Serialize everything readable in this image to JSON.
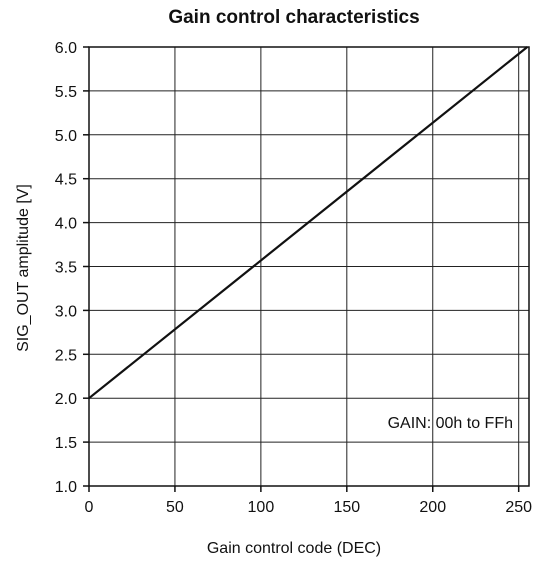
{
  "chart_data": {
    "type": "line",
    "title": "Gain control characteristics",
    "xlabel": "Gain control code (DEC)",
    "ylabel": "SIG_OUT amplitude [V]",
    "xlim": [
      0,
      256
    ],
    "ylim": [
      1.0,
      6.0
    ],
    "x_ticks": [
      0,
      50,
      100,
      150,
      200,
      250
    ],
    "x_tick_labels": [
      "0",
      "50",
      "100",
      "150",
      "200",
      "250"
    ],
    "y_ticks": [
      1.0,
      1.5,
      2.0,
      2.5,
      3.0,
      3.5,
      4.0,
      4.5,
      5.0,
      5.5,
      6.0
    ],
    "y_tick_labels": [
      "1.0",
      "1.5",
      "2.0",
      "2.5",
      "3.0",
      "3.5",
      "4.0",
      "4.5",
      "5.0",
      "5.5",
      "6.0"
    ],
    "grid": true,
    "series": [
      {
        "x": [
          0,
          255
        ],
        "y": [
          2.0,
          6.0
        ]
      }
    ],
    "annotation": "GAIN: 00h to FFh",
    "annotation_position": "bottom-right",
    "colors": {
      "line": "#111111",
      "grid": "#222222",
      "frame": "#111111"
    }
  }
}
